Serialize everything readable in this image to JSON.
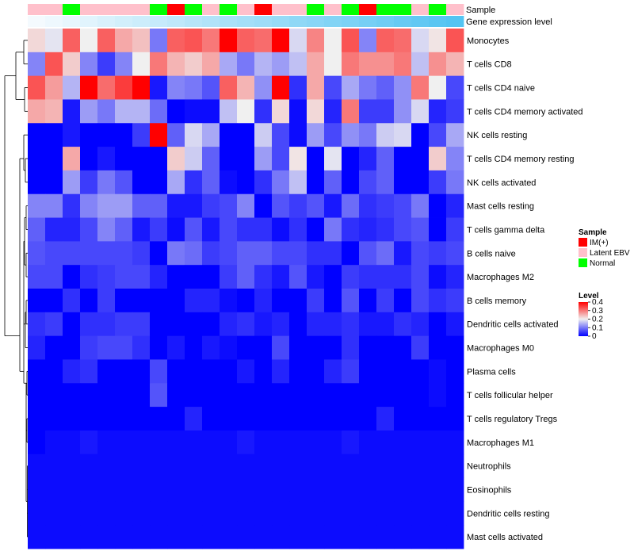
{
  "chart_data": {
    "type": "heatmap",
    "title": "",
    "annotation_labels": {
      "sample": "Sample",
      "expression": "Gene expression level"
    },
    "rows": [
      "Monocytes",
      "T cells CD8",
      "T cells CD4 naive",
      "T cells CD4 memory activated",
      "NK cells resting",
      "T cells CD4 memory resting",
      "NK cells activated",
      "Mast cells resting",
      "T cells gamma delta",
      "B cells naive",
      "Macrophages M2",
      "B cells memory",
      "Dendritic cells activated",
      "Macrophages M0",
      "Plasma cells",
      "T cells follicular helper",
      "T cells regulatory  Tregs",
      "Macrophages M1",
      "Neutrophils",
      "Eosinophils",
      "Dendritic cells resting",
      "Mast cells activated"
    ],
    "sample_groups": [
      "Latent EBV",
      "Latent EBV",
      "Normal",
      "Latent EBV",
      "Latent EBV",
      "Latent EBV",
      "Latent EBV",
      "Normal",
      "IM(+)",
      "Normal",
      "Latent EBV",
      "Normal",
      "Latent EBV",
      "IM(+)",
      "Latent EBV",
      "Latent EBV",
      "Normal",
      "Latent EBV",
      "Normal",
      "IM(+)",
      "Normal",
      "Normal",
      "Latent EBV",
      "Normal",
      "Latent EBV"
    ],
    "expression_annotation": [
      0.0,
      0.04,
      0.08,
      0.12,
      0.17,
      0.21,
      0.25,
      0.29,
      0.33,
      0.38,
      0.42,
      0.46,
      0.5,
      0.54,
      0.58,
      0.63,
      0.67,
      0.71,
      0.75,
      0.79,
      0.83,
      0.88,
      0.92,
      0.96,
      1.0
    ],
    "values": [
      [
        0.22,
        0.19,
        0.32,
        0.2,
        0.32,
        0.26,
        0.24,
        0.1,
        0.32,
        0.33,
        0.3,
        0.4,
        0.32,
        0.31,
        0.4,
        0.18,
        0.29,
        0.2,
        0.33,
        0.11,
        0.32,
        0.31,
        0.18,
        0.21,
        0.33
      ],
      [
        0.11,
        0.33,
        0.23,
        0.11,
        0.05,
        0.11,
        0.2,
        0.3,
        0.25,
        0.23,
        0.26,
        0.14,
        0.1,
        0.15,
        0.13,
        0.16,
        0.26,
        0.2,
        0.3,
        0.28,
        0.28,
        0.3,
        0.16,
        0.28,
        0.25
      ],
      [
        0.33,
        0.27,
        0.15,
        0.4,
        0.31,
        0.35,
        0.4,
        0.02,
        0.11,
        0.1,
        0.07,
        0.32,
        0.25,
        0.12,
        0.4,
        0.04,
        0.26,
        0.06,
        0.14,
        0.1,
        0.08,
        0.12,
        0.3,
        0.2,
        0.06
      ],
      [
        0.26,
        0.25,
        0.02,
        0.13,
        0.1,
        0.15,
        0.15,
        0.09,
        0.0,
        0.01,
        0.01,
        0.16,
        0.2,
        0.04,
        0.22,
        0.01,
        0.22,
        0.03,
        0.3,
        0.05,
        0.05,
        0.12,
        0.18,
        0.03,
        0.05
      ],
      [
        0.0,
        0.0,
        0.02,
        0.0,
        0.0,
        0.0,
        0.05,
        0.4,
        0.08,
        0.18,
        0.14,
        0.0,
        0.0,
        0.17,
        0.06,
        0.01,
        0.13,
        0.06,
        0.12,
        0.1,
        0.17,
        0.18,
        0.0,
        0.06,
        0.14
      ],
      [
        0.0,
        0.0,
        0.26,
        0.0,
        0.02,
        0.0,
        0.0,
        0.0,
        0.23,
        0.17,
        0.08,
        0.0,
        0.0,
        0.13,
        0.06,
        0.21,
        0.0,
        0.19,
        0.0,
        0.03,
        0.08,
        0.0,
        0.0,
        0.23,
        0.11
      ],
      [
        0.0,
        0.0,
        0.13,
        0.05,
        0.1,
        0.07,
        0.0,
        0.0,
        0.14,
        0.04,
        0.08,
        0.01,
        0.0,
        0.04,
        0.1,
        0.16,
        0.0,
        0.08,
        0.0,
        0.06,
        0.08,
        0.0,
        0.0,
        0.05,
        0.1
      ],
      [
        0.11,
        0.11,
        0.04,
        0.11,
        0.13,
        0.13,
        0.08,
        0.08,
        0.02,
        0.02,
        0.05,
        0.06,
        0.11,
        0.0,
        0.07,
        0.05,
        0.07,
        0.02,
        0.09,
        0.04,
        0.05,
        0.06,
        0.1,
        0.0,
        0.03
      ],
      [
        0.08,
        0.03,
        0.03,
        0.06,
        0.11,
        0.08,
        0.02,
        0.05,
        0.01,
        0.07,
        0.02,
        0.06,
        0.04,
        0.04,
        0.01,
        0.04,
        0.0,
        0.1,
        0.04,
        0.03,
        0.04,
        0.06,
        0.07,
        0.0,
        0.05
      ],
      [
        0.07,
        0.06,
        0.06,
        0.06,
        0.06,
        0.06,
        0.05,
        0.0,
        0.1,
        0.09,
        0.05,
        0.06,
        0.08,
        0.08,
        0.06,
        0.06,
        0.04,
        0.04,
        0.0,
        0.07,
        0.09,
        0.02,
        0.06,
        0.05,
        0.06
      ],
      [
        0.06,
        0.06,
        0.0,
        0.04,
        0.05,
        0.06,
        0.06,
        0.03,
        0.0,
        0.0,
        0.0,
        0.05,
        0.08,
        0.04,
        0.02,
        0.07,
        0.02,
        0.0,
        0.05,
        0.04,
        0.04,
        0.04,
        0.06,
        0.01,
        0.03
      ],
      [
        0.0,
        0.0,
        0.04,
        0.0,
        0.05,
        0.0,
        0.0,
        0.0,
        0.0,
        0.03,
        0.03,
        0.01,
        0.0,
        0.03,
        0.0,
        0.0,
        0.05,
        0.0,
        0.07,
        0.0,
        0.05,
        0.0,
        0.06,
        0.04,
        0.05
      ],
      [
        0.04,
        0.05,
        0.0,
        0.04,
        0.04,
        0.05,
        0.05,
        0.0,
        0.0,
        0.0,
        0.0,
        0.03,
        0.04,
        0.02,
        0.03,
        0.0,
        0.03,
        0.03,
        0.04,
        0.02,
        0.02,
        0.04,
        0.03,
        0.0,
        0.02
      ],
      [
        0.03,
        0.0,
        0.0,
        0.05,
        0.06,
        0.06,
        0.04,
        0.0,
        0.02,
        0.0,
        0.02,
        0.01,
        0.0,
        0.0,
        0.06,
        0.0,
        0.0,
        0.0,
        0.04,
        0.0,
        0.0,
        0.0,
        0.05,
        0.0,
        0.0
      ],
      [
        0.0,
        0.0,
        0.03,
        0.04,
        0.0,
        0.0,
        0.0,
        0.06,
        0.0,
        0.0,
        0.0,
        0.0,
        0.02,
        0.0,
        0.03,
        0.0,
        0.0,
        0.03,
        0.05,
        0.0,
        0.0,
        0.0,
        0.0,
        0.01,
        0.0
      ],
      [
        0.0,
        0.0,
        0.0,
        0.0,
        0.0,
        0.0,
        0.0,
        0.07,
        0.0,
        0.0,
        0.0,
        0.0,
        0.0,
        0.0,
        0.0,
        0.0,
        0.0,
        0.0,
        0.0,
        0.0,
        0.0,
        0.0,
        0.0,
        0.01,
        0.0
      ],
      [
        0.0,
        0.0,
        0.0,
        0.0,
        0.0,
        0.0,
        0.0,
        0.0,
        0.0,
        0.03,
        0.0,
        0.0,
        0.0,
        0.0,
        0.0,
        0.0,
        0.0,
        0.0,
        0.0,
        0.0,
        0.03,
        0.0,
        0.0,
        0.0,
        0.0
      ],
      [
        0.0,
        0.01,
        0.01,
        0.02,
        0.01,
        0.01,
        0.01,
        0.01,
        0.01,
        0.01,
        0.01,
        0.01,
        0.02,
        0.01,
        0.01,
        0.01,
        0.01,
        0.01,
        0.02,
        0.01,
        0.01,
        0.01,
        0.01,
        0.01,
        0.01
      ],
      [
        0.01,
        0.01,
        0.01,
        0.01,
        0.01,
        0.01,
        0.01,
        0.01,
        0.01,
        0.01,
        0.01,
        0.01,
        0.01,
        0.01,
        0.01,
        0.01,
        0.01,
        0.01,
        0.01,
        0.01,
        0.01,
        0.01,
        0.01,
        0.01,
        0.01
      ],
      [
        0.01,
        0.01,
        0.01,
        0.01,
        0.01,
        0.01,
        0.01,
        0.01,
        0.01,
        0.01,
        0.01,
        0.01,
        0.01,
        0.01,
        0.01,
        0.01,
        0.01,
        0.01,
        0.01,
        0.01,
        0.01,
        0.01,
        0.01,
        0.01,
        0.01
      ],
      [
        0.01,
        0.01,
        0.01,
        0.01,
        0.01,
        0.01,
        0.01,
        0.01,
        0.01,
        0.01,
        0.01,
        0.01,
        0.01,
        0.01,
        0.01,
        0.01,
        0.01,
        0.01,
        0.01,
        0.01,
        0.01,
        0.01,
        0.01,
        0.01,
        0.01
      ],
      [
        0.01,
        0.01,
        0.01,
        0.01,
        0.01,
        0.01,
        0.01,
        0.01,
        0.01,
        0.01,
        0.01,
        0.01,
        0.01,
        0.01,
        0.01,
        0.01,
        0.01,
        0.01,
        0.01,
        0.01,
        0.01,
        0.01,
        0.01,
        0.01,
        0.01
      ]
    ],
    "color_scale": {
      "min": 0,
      "mid": 0.2,
      "max": 0.4,
      "low_color": "#0000ff",
      "mid_color": "#f0f0f0",
      "high_color": "#ff0000"
    },
    "legend": {
      "sample_title": "Sample",
      "sample_entries": [
        {
          "label": "IM(+)",
          "color": "#ff0000"
        },
        {
          "label": "Latent EBV",
          "color": "#ffc0cb"
        },
        {
          "label": "Normal",
          "color": "#00ff00"
        }
      ],
      "level_title": "Level",
      "level_ticks": [
        0.4,
        0.3,
        0.2,
        0.1,
        0
      ]
    },
    "expression_colors": {
      "low": "#f4fafe",
      "high": "#54c4f2"
    },
    "dendrogram_visible": true
  }
}
